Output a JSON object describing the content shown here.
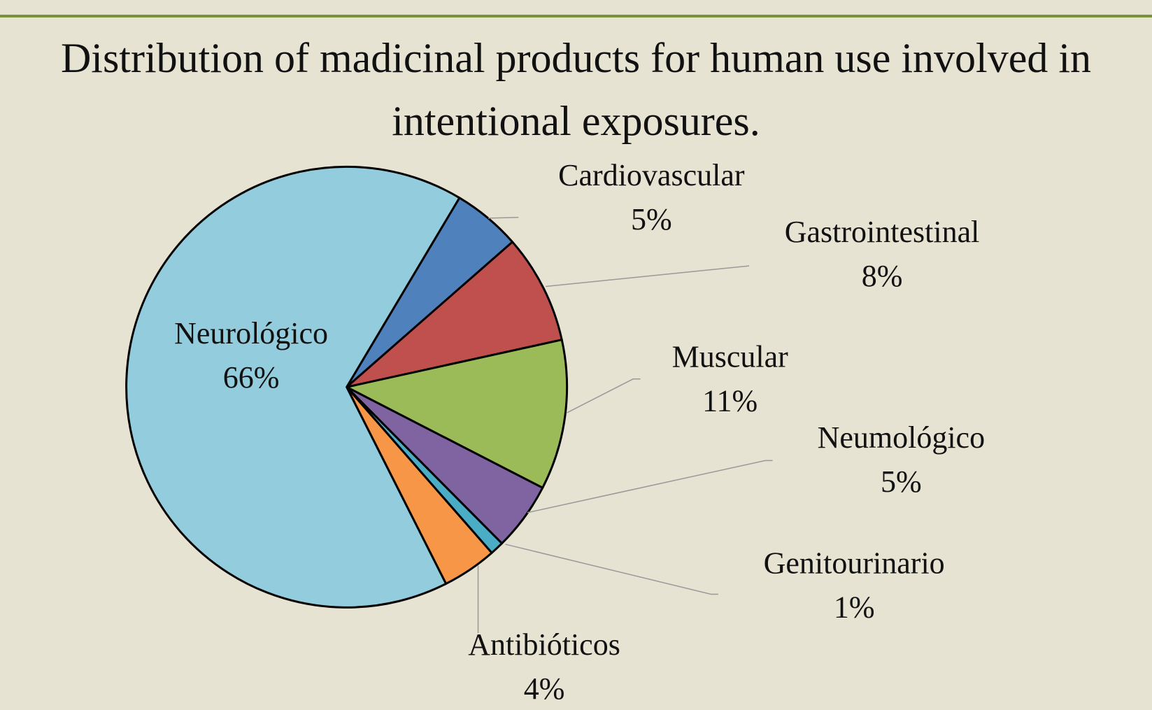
{
  "chart_data": {
    "type": "pie",
    "title": "Distribution of madicinal products for human use involved in intentional exposures.",
    "categories": [
      "Cardiovascular",
      "Gastrointestinal",
      "Muscular",
      "Neumológico",
      "Genitourinario",
      "Antibióticos",
      "Neurológico"
    ],
    "values": [
      5,
      8,
      11,
      5,
      1,
      4,
      66
    ],
    "value_labels": [
      "5%",
      "8%",
      "11%",
      "5%",
      "1%",
      "4%",
      "66%"
    ],
    "colors": [
      "#4f81bd",
      "#c0504d",
      "#9bbb59",
      "#8064a2",
      "#4bacc6",
      "#f79646",
      "#93cddd"
    ]
  }
}
